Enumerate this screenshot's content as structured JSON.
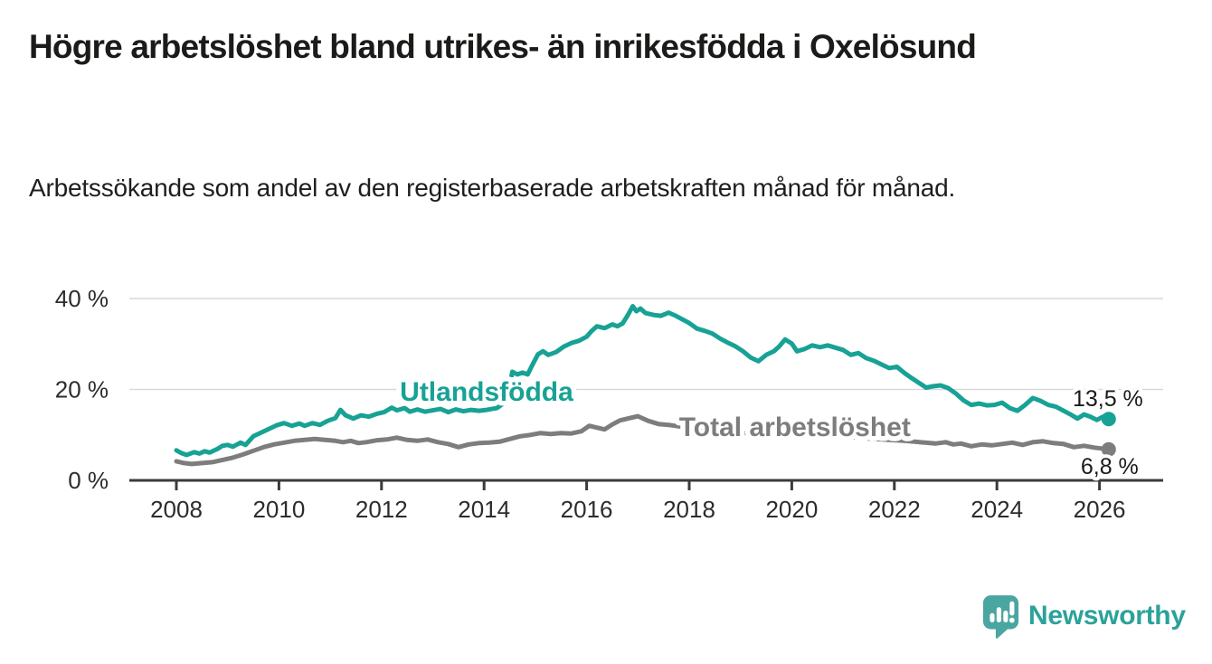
{
  "header": {
    "title": "Högre arbetslöshet bland utrikes- än inrikesfödda i Oxelösund",
    "subtitle": "Arbetssökande som andel av den registerbaserade arbetskraften månad för månad."
  },
  "chart_data": {
    "type": "line",
    "x_unit": "year (monthly observations)",
    "ylabel": "",
    "xlim": [
      2007.1,
      2027.3
    ],
    "ylim": [
      0,
      44
    ],
    "grid": "horizontal only",
    "grid_y_values": [
      20,
      40
    ],
    "y_ticks": [
      {
        "value": 0,
        "label": "0 %"
      },
      {
        "value": 20,
        "label": "20 %"
      },
      {
        "value": 40,
        "label": "40 %"
      }
    ],
    "x_ticks": [
      {
        "value": 2008,
        "label": "2008"
      },
      {
        "value": 2010,
        "label": "2010"
      },
      {
        "value": 2012,
        "label": "2012"
      },
      {
        "value": 2014,
        "label": "2014"
      },
      {
        "value": 2016,
        "label": "2016"
      },
      {
        "value": 2018,
        "label": "2018"
      },
      {
        "value": 2020,
        "label": "2020"
      },
      {
        "value": 2022,
        "label": "2022"
      },
      {
        "value": 2024,
        "label": "2024"
      },
      {
        "value": 2026,
        "label": "2026"
      }
    ],
    "series": [
      {
        "name": "Utlandsfödda",
        "color": "#17a295",
        "end_label": "13,5 %",
        "end_value": 13.5,
        "label_pos": {
          "x": 2014.05,
          "y": 17.5
        },
        "points": [
          [
            2008.0,
            6.6
          ],
          [
            2008.1,
            6.0
          ],
          [
            2008.2,
            5.6
          ],
          [
            2008.35,
            6.2
          ],
          [
            2008.45,
            5.9
          ],
          [
            2008.55,
            6.4
          ],
          [
            2008.65,
            6.1
          ],
          [
            2008.8,
            6.9
          ],
          [
            2008.9,
            7.6
          ],
          [
            2009.0,
            7.8
          ],
          [
            2009.1,
            7.4
          ],
          [
            2009.25,
            8.3
          ],
          [
            2009.35,
            7.8
          ],
          [
            2009.5,
            9.7
          ],
          [
            2009.65,
            10.5
          ],
          [
            2009.8,
            11.3
          ],
          [
            2009.95,
            12.1
          ],
          [
            2010.1,
            12.6
          ],
          [
            2010.25,
            12.0
          ],
          [
            2010.4,
            12.5
          ],
          [
            2010.5,
            12.0
          ],
          [
            2010.65,
            12.6
          ],
          [
            2010.8,
            12.2
          ],
          [
            2010.95,
            13.1
          ],
          [
            2011.1,
            13.7
          ],
          [
            2011.2,
            15.5
          ],
          [
            2011.3,
            14.3
          ],
          [
            2011.45,
            13.6
          ],
          [
            2011.6,
            14.3
          ],
          [
            2011.75,
            14.0
          ],
          [
            2011.9,
            14.6
          ],
          [
            2012.05,
            15.0
          ],
          [
            2012.2,
            16.0
          ],
          [
            2012.3,
            15.4
          ],
          [
            2012.45,
            15.9
          ],
          [
            2012.55,
            15.1
          ],
          [
            2012.7,
            15.6
          ],
          [
            2012.85,
            15.1
          ],
          [
            2013.0,
            15.4
          ],
          [
            2013.15,
            15.7
          ],
          [
            2013.3,
            15.0
          ],
          [
            2013.45,
            15.6
          ],
          [
            2013.6,
            15.2
          ],
          [
            2013.75,
            15.5
          ],
          [
            2013.9,
            15.3
          ],
          [
            2014.05,
            15.5
          ],
          [
            2014.25,
            15.9
          ],
          [
            2014.45,
            17.5
          ],
          [
            2014.55,
            23.9
          ],
          [
            2014.65,
            23.3
          ],
          [
            2014.75,
            23.7
          ],
          [
            2014.85,
            23.3
          ],
          [
            2014.95,
            25.6
          ],
          [
            2015.05,
            27.7
          ],
          [
            2015.15,
            28.4
          ],
          [
            2015.25,
            27.6
          ],
          [
            2015.4,
            28.2
          ],
          [
            2015.55,
            29.4
          ],
          [
            2015.7,
            30.2
          ],
          [
            2015.85,
            30.7
          ],
          [
            2016.0,
            31.6
          ],
          [
            2016.1,
            32.9
          ],
          [
            2016.2,
            33.9
          ],
          [
            2016.35,
            33.5
          ],
          [
            2016.5,
            34.3
          ],
          [
            2016.6,
            33.9
          ],
          [
            2016.7,
            34.5
          ],
          [
            2016.8,
            36.3
          ],
          [
            2016.9,
            38.3
          ],
          [
            2016.97,
            37.2
          ],
          [
            2017.05,
            37.8
          ],
          [
            2017.15,
            36.8
          ],
          [
            2017.3,
            36.4
          ],
          [
            2017.45,
            36.2
          ],
          [
            2017.6,
            36.9
          ],
          [
            2017.72,
            36.3
          ],
          [
            2017.85,
            35.5
          ],
          [
            2018.0,
            34.6
          ],
          [
            2018.15,
            33.4
          ],
          [
            2018.3,
            32.9
          ],
          [
            2018.45,
            32.3
          ],
          [
            2018.6,
            31.2
          ],
          [
            2018.75,
            30.3
          ],
          [
            2018.9,
            29.5
          ],
          [
            2019.05,
            28.4
          ],
          [
            2019.2,
            27.0
          ],
          [
            2019.35,
            26.2
          ],
          [
            2019.5,
            27.6
          ],
          [
            2019.65,
            28.4
          ],
          [
            2019.75,
            29.4
          ],
          [
            2019.87,
            31.0
          ],
          [
            2020.0,
            30.1
          ],
          [
            2020.1,
            28.4
          ],
          [
            2020.25,
            28.9
          ],
          [
            2020.4,
            29.7
          ],
          [
            2020.55,
            29.3
          ],
          [
            2020.7,
            29.7
          ],
          [
            2020.85,
            29.2
          ],
          [
            2021.0,
            28.7
          ],
          [
            2021.15,
            27.6
          ],
          [
            2021.3,
            28.0
          ],
          [
            2021.45,
            26.9
          ],
          [
            2021.6,
            26.3
          ],
          [
            2021.75,
            25.5
          ],
          [
            2021.9,
            24.7
          ],
          [
            2022.05,
            25.0
          ],
          [
            2022.2,
            23.6
          ],
          [
            2022.35,
            22.4
          ],
          [
            2022.5,
            21.3
          ],
          [
            2022.62,
            20.4
          ],
          [
            2022.75,
            20.7
          ],
          [
            2022.9,
            20.9
          ],
          [
            2023.05,
            20.3
          ],
          [
            2023.2,
            19.1
          ],
          [
            2023.35,
            17.6
          ],
          [
            2023.5,
            16.6
          ],
          [
            2023.65,
            16.9
          ],
          [
            2023.8,
            16.5
          ],
          [
            2023.95,
            16.6
          ],
          [
            2024.1,
            17.1
          ],
          [
            2024.25,
            15.9
          ],
          [
            2024.4,
            15.3
          ],
          [
            2024.55,
            16.6
          ],
          [
            2024.7,
            18.1
          ],
          [
            2024.85,
            17.5
          ],
          [
            2025.0,
            16.6
          ],
          [
            2025.15,
            16.2
          ],
          [
            2025.3,
            15.3
          ],
          [
            2025.45,
            14.4
          ],
          [
            2025.57,
            13.6
          ],
          [
            2025.7,
            14.5
          ],
          [
            2025.82,
            14.0
          ],
          [
            2025.95,
            13.3
          ],
          [
            2026.07,
            14.0
          ],
          [
            2026.18,
            13.5
          ]
        ]
      },
      {
        "name": "Total arbetslöshet",
        "color": "#7d7d7d",
        "end_label": "6,8 %",
        "end_value": 6.8,
        "label_pos": {
          "x": 2020.06,
          "y": 9.75
        },
        "points": [
          [
            2008.0,
            4.2
          ],
          [
            2008.15,
            3.8
          ],
          [
            2008.3,
            3.6
          ],
          [
            2008.5,
            3.8
          ],
          [
            2008.7,
            4.0
          ],
          [
            2008.9,
            4.5
          ],
          [
            2009.1,
            5.0
          ],
          [
            2009.3,
            5.7
          ],
          [
            2009.5,
            6.5
          ],
          [
            2009.7,
            7.3
          ],
          [
            2009.9,
            7.9
          ],
          [
            2010.1,
            8.3
          ],
          [
            2010.3,
            8.7
          ],
          [
            2010.5,
            8.9
          ],
          [
            2010.7,
            9.1
          ],
          [
            2010.9,
            8.9
          ],
          [
            2011.1,
            8.7
          ],
          [
            2011.25,
            8.4
          ],
          [
            2011.4,
            8.7
          ],
          [
            2011.55,
            8.2
          ],
          [
            2011.7,
            8.4
          ],
          [
            2011.9,
            8.8
          ],
          [
            2012.1,
            9.0
          ],
          [
            2012.3,
            9.4
          ],
          [
            2012.5,
            8.9
          ],
          [
            2012.7,
            8.7
          ],
          [
            2012.9,
            9.0
          ],
          [
            2013.1,
            8.4
          ],
          [
            2013.3,
            8.0
          ],
          [
            2013.5,
            7.3
          ],
          [
            2013.7,
            7.9
          ],
          [
            2013.9,
            8.2
          ],
          [
            2014.1,
            8.3
          ],
          [
            2014.3,
            8.5
          ],
          [
            2014.5,
            9.1
          ],
          [
            2014.7,
            9.7
          ],
          [
            2014.9,
            10.0
          ],
          [
            2015.1,
            10.4
          ],
          [
            2015.3,
            10.2
          ],
          [
            2015.5,
            10.4
          ],
          [
            2015.7,
            10.3
          ],
          [
            2015.9,
            10.8
          ],
          [
            2016.05,
            12.0
          ],
          [
            2016.2,
            11.6
          ],
          [
            2016.35,
            11.2
          ],
          [
            2016.5,
            12.3
          ],
          [
            2016.65,
            13.2
          ],
          [
            2016.8,
            13.6
          ],
          [
            2017.0,
            14.1
          ],
          [
            2017.2,
            13.1
          ],
          [
            2017.4,
            12.4
          ],
          [
            2017.6,
            12.2
          ],
          [
            2017.9,
            11.7
          ],
          [
            2018.3,
            11.2
          ],
          [
            2018.7,
            10.8
          ],
          [
            2019.1,
            10.4
          ],
          [
            2019.5,
            10.1
          ],
          [
            2019.9,
            10.4
          ],
          [
            2020.3,
            10.4
          ],
          [
            2020.7,
            10.1
          ],
          [
            2021.1,
            9.6
          ],
          [
            2021.5,
            9.2
          ],
          [
            2021.9,
            8.9
          ],
          [
            2022.2,
            8.7
          ],
          [
            2022.4,
            8.5
          ],
          [
            2022.6,
            8.3
          ],
          [
            2022.8,
            8.1
          ],
          [
            2023.0,
            8.4
          ],
          [
            2023.15,
            7.9
          ],
          [
            2023.3,
            8.1
          ],
          [
            2023.5,
            7.5
          ],
          [
            2023.7,
            7.9
          ],
          [
            2023.9,
            7.7
          ],
          [
            2024.1,
            8.0
          ],
          [
            2024.3,
            8.3
          ],
          [
            2024.5,
            7.8
          ],
          [
            2024.7,
            8.4
          ],
          [
            2024.9,
            8.6
          ],
          [
            2025.1,
            8.2
          ],
          [
            2025.3,
            8.0
          ],
          [
            2025.5,
            7.3
          ],
          [
            2025.7,
            7.6
          ],
          [
            2025.9,
            7.2
          ],
          [
            2026.05,
            7.0
          ],
          [
            2026.18,
            6.8
          ]
        ]
      }
    ]
  },
  "footer": {
    "brand": "Newsworthy",
    "logo_color": "#4aa6a1",
    "text_color": "#2ba29a"
  }
}
